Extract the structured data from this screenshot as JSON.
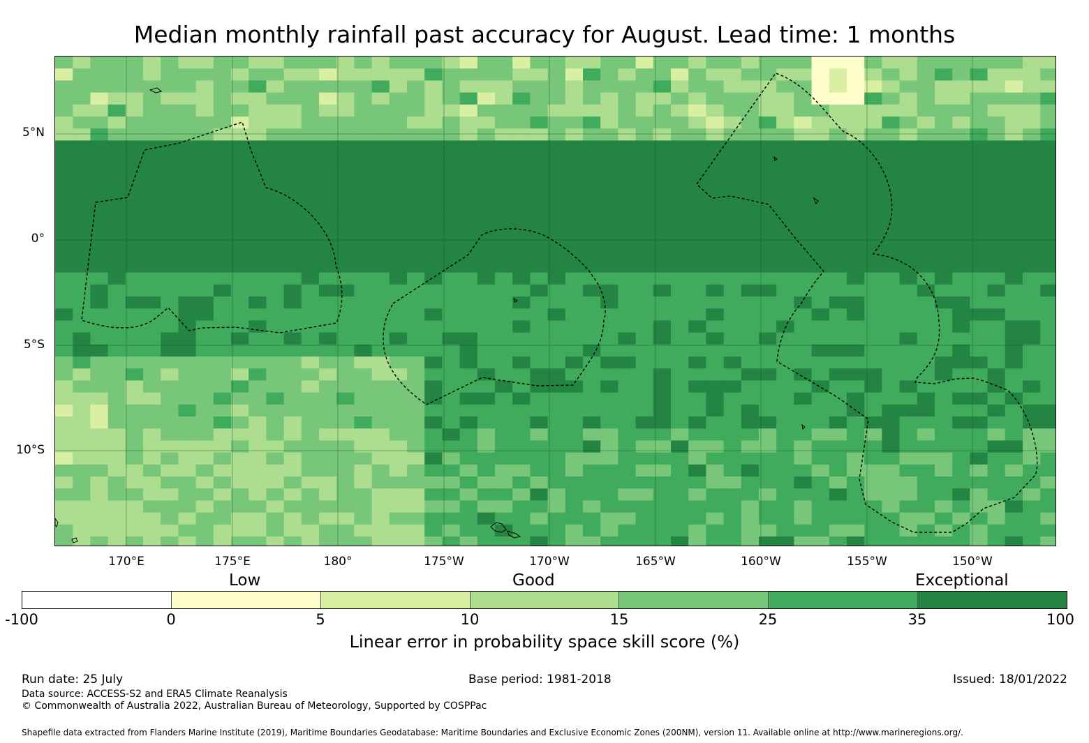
{
  "title": "Median monthly rainfall past accuracy for August. Lead time: 1 months",
  "lat_labels": [
    "5°N",
    "0°",
    "5°S",
    "10°S"
  ],
  "lon_labels": [
    "170°E",
    "175°E",
    "180°",
    "175°W",
    "170°W",
    "165°W",
    "160°W",
    "155°W",
    "150°W"
  ],
  "categories": {
    "low": "Low",
    "good": "Good",
    "exceptional": "Exceptional"
  },
  "colorbar": {
    "ticks": [
      "-100",
      "0",
      "5",
      "10",
      "15",
      "25",
      "35",
      "100"
    ],
    "colors": [
      "#ffffff",
      "#ffffcc",
      "#d9f0a3",
      "#addd8e",
      "#78c679",
      "#41ab5d",
      "#238443"
    ],
    "label": "Linear error in probability space skill score (%)"
  },
  "footer": {
    "run_date": "Run date: 25 July",
    "base_period": "Base period: 1981-2018",
    "issued": "Issued: 18/01/2022",
    "data_source": "Data source: ACCESS-S2 and ERA5 Climate Reanalysis",
    "copyright": "© Commonwealth of Australia 2022, Australian Bureau of Meteorology, Supported by COSPPac",
    "shapefile": "Shapefile data extracted from Flanders Marine Institute (2019), Maritime Boundaries Geodatabase: Maritime Boundaries and Exclusive Economic Zones (200NM), version 11. Available online at http://www.marineregions.org/."
  }
}
